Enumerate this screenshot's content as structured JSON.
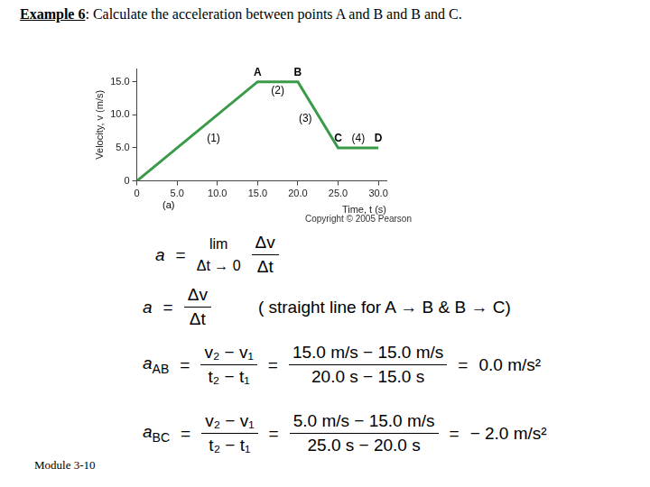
{
  "heading": {
    "label": "Example 6",
    "text": ": Calculate the acceleration between points A and B and B and C."
  },
  "chart_data": {
    "type": "line",
    "x": [
      0,
      15,
      20,
      25,
      30
    ],
    "values": [
      0,
      15,
      15,
      5,
      5
    ],
    "point_labels": [
      null,
      "A",
      "B",
      "C",
      "D"
    ],
    "segment_labels": [
      "(1)",
      "(2)",
      "(3)",
      "(4)"
    ],
    "color": "#3b9a4a",
    "x_label": "Time, t (s)",
    "y_label": "Velocity, v (m/s)",
    "xlim": [
      0,
      31
    ],
    "xticks": [
      0,
      {
        "value": 5,
        "label": "5.0"
      },
      {
        "value": 10,
        "label": "10.0"
      },
      {
        "value": 15,
        "label": "15.0"
      },
      {
        "value": 20,
        "label": "20.0"
      },
      {
        "value": 25,
        "label": "25.0"
      },
      {
        "value": 30,
        "label": "30.0"
      }
    ],
    "ylim": [
      0,
      17
    ],
    "yticks": [
      0,
      {
        "value": 5,
        "label": "5.0"
      },
      {
        "value": 10,
        "label": "10.0"
      },
      {
        "value": 15,
        "label": "15.0"
      }
    ],
    "grid": false
  },
  "panel_label": "(a)",
  "source": "Copyright © 2005 Pearson",
  "equals": "=",
  "limit": {
    "lhs": "a",
    "op": "lim",
    "under": "Δt → 0",
    "num": "Δv",
    "den": "Δt"
  },
  "definition": {
    "lhs": "a",
    "num": "Δv",
    "den": "Δt",
    "note": "( straight line for A → B & B → C)"
  },
  "rows": [
    {
      "lhs": "a",
      "sub": "AB",
      "formula_num": "v₂ − v₁",
      "formula_den": "t₂ − t₁",
      "values_num": "15.0 m/s  −  15.0 m/s",
      "values_den": "20.0 s − 15.0 s",
      "result": "0.0 m/s²"
    },
    {
      "lhs": "a",
      "sub": "BC",
      "formula_num": "v₂ − v₁",
      "formula_den": "t₂ − t₁",
      "values_num": "5.0 m/s  −  15.0 m/s",
      "values_den": "25.0 s − 20.0 s",
      "result": "− 2.0 m/s²"
    }
  ],
  "footer": "Module 3-10"
}
